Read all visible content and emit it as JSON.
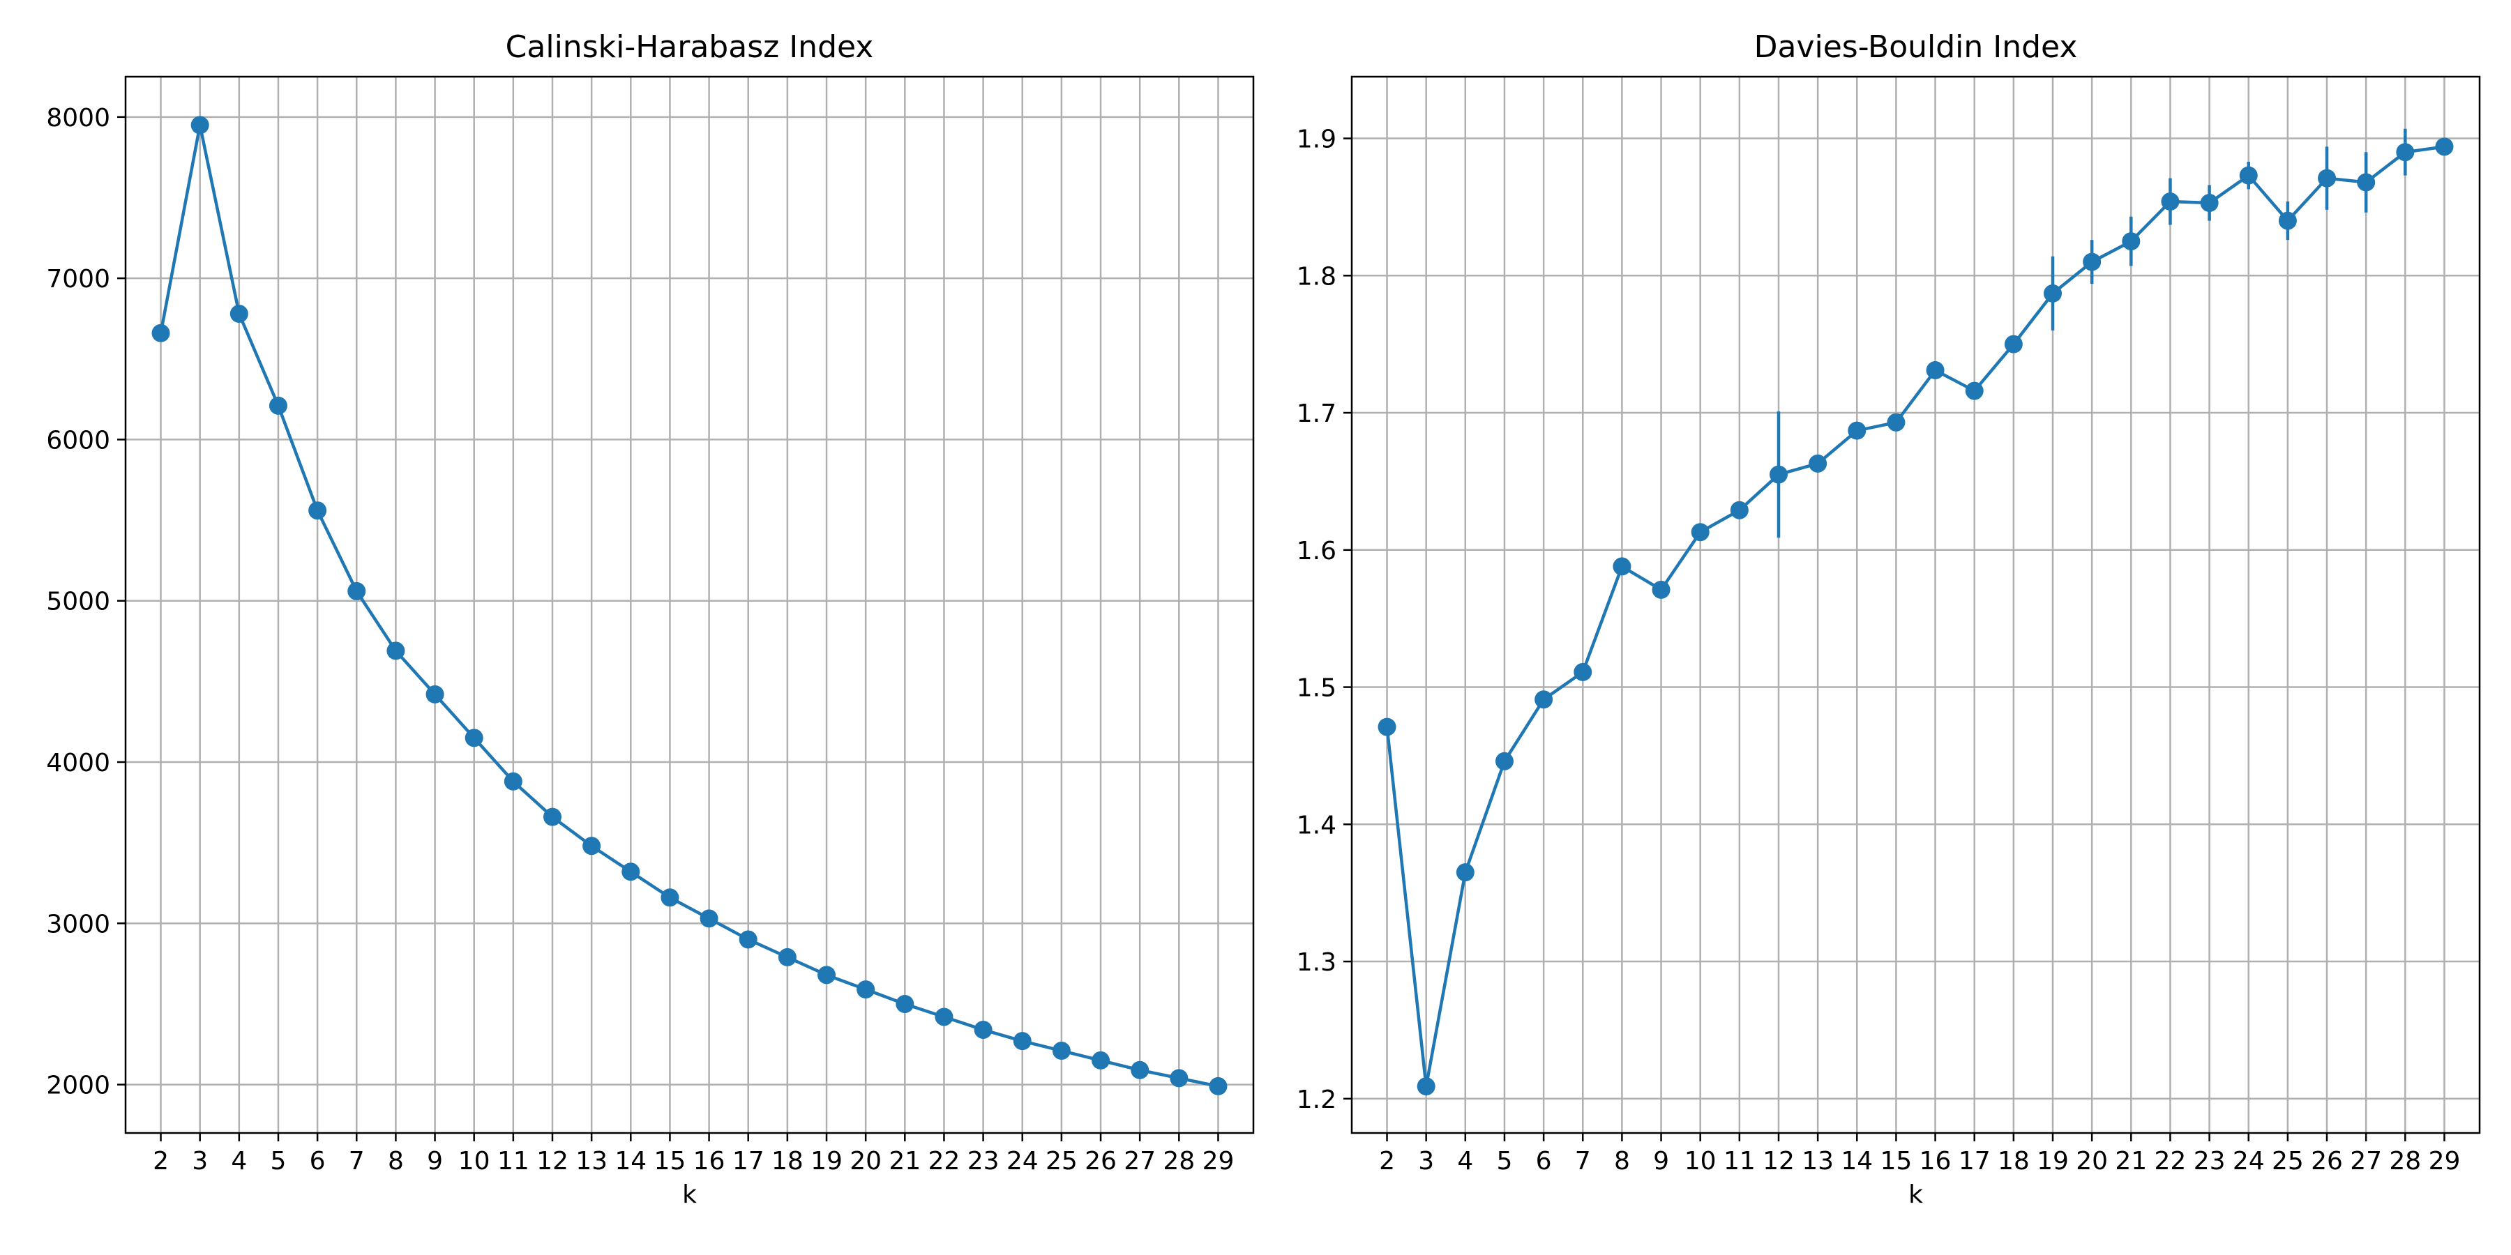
{
  "chart_data": [
    {
      "type": "line",
      "title": "Calinski-Harabasz Index",
      "xlabel": "k",
      "ylabel": "",
      "x": [
        2,
        3,
        4,
        5,
        6,
        7,
        8,
        9,
        10,
        11,
        12,
        13,
        14,
        15,
        16,
        17,
        18,
        19,
        20,
        21,
        22,
        23,
        24,
        25,
        26,
        27,
        28,
        29
      ],
      "y": [
        6660,
        7950,
        6780,
        6210,
        5560,
        5060,
        4690,
        4420,
        4150,
        3880,
        3660,
        3480,
        3320,
        3160,
        3030,
        2900,
        2790,
        2680,
        2590,
        2500,
        2420,
        2340,
        2270,
        2210,
        2150,
        2090,
        2040,
        1990
      ],
      "yerr": [
        0,
        0,
        0,
        0,
        0,
        0,
        0,
        0,
        0,
        0,
        0,
        0,
        0,
        0,
        0,
        0,
        0,
        0,
        0,
        0,
        0,
        0,
        0,
        0,
        0,
        0,
        0,
        0
      ],
      "ylim": [
        1700,
        8250
      ],
      "xlim": [
        1.1,
        29.9
      ],
      "yticks": [
        2000,
        3000,
        4000,
        5000,
        6000,
        7000,
        8000
      ],
      "ytick_labels": [
        "2000",
        "3000",
        "4000",
        "5000",
        "6000",
        "7000",
        "8000"
      ],
      "grid": true,
      "color": "#1f77b4"
    },
    {
      "type": "line",
      "title": "Davies-Bouldin Index",
      "xlabel": "k",
      "ylabel": "",
      "x": [
        2,
        3,
        4,
        5,
        6,
        7,
        8,
        9,
        10,
        11,
        12,
        13,
        14,
        15,
        16,
        17,
        18,
        19,
        20,
        21,
        22,
        23,
        24,
        25,
        26,
        27,
        28,
        29
      ],
      "y": [
        1.471,
        1.209,
        1.365,
        1.446,
        1.491,
        1.511,
        1.588,
        1.571,
        1.613,
        1.629,
        1.655,
        1.663,
        1.687,
        1.693,
        1.731,
        1.716,
        1.75,
        1.787,
        1.81,
        1.825,
        1.854,
        1.853,
        1.873,
        1.84,
        1.871,
        1.868,
        1.89,
        1.894
      ],
      "yerr": [
        0,
        0,
        0,
        0,
        0,
        0,
        0,
        0,
        0,
        0,
        0.046,
        0,
        0,
        0,
        0,
        0,
        0,
        0.027,
        0.016,
        0.018,
        0.017,
        0.013,
        0.01,
        0.014,
        0.023,
        0.022,
        0.017,
        0.006
      ],
      "ylim": [
        1.175,
        1.945
      ],
      "xlim": [
        1.1,
        29.9
      ],
      "yticks": [
        1.2,
        1.3,
        1.4,
        1.5,
        1.6,
        1.7,
        1.8,
        1.9
      ],
      "ytick_labels": [
        "1.2",
        "1.3",
        "1.4",
        "1.5",
        "1.6",
        "1.7",
        "1.8",
        "1.9"
      ],
      "grid": true,
      "color": "#1f77b4"
    }
  ]
}
